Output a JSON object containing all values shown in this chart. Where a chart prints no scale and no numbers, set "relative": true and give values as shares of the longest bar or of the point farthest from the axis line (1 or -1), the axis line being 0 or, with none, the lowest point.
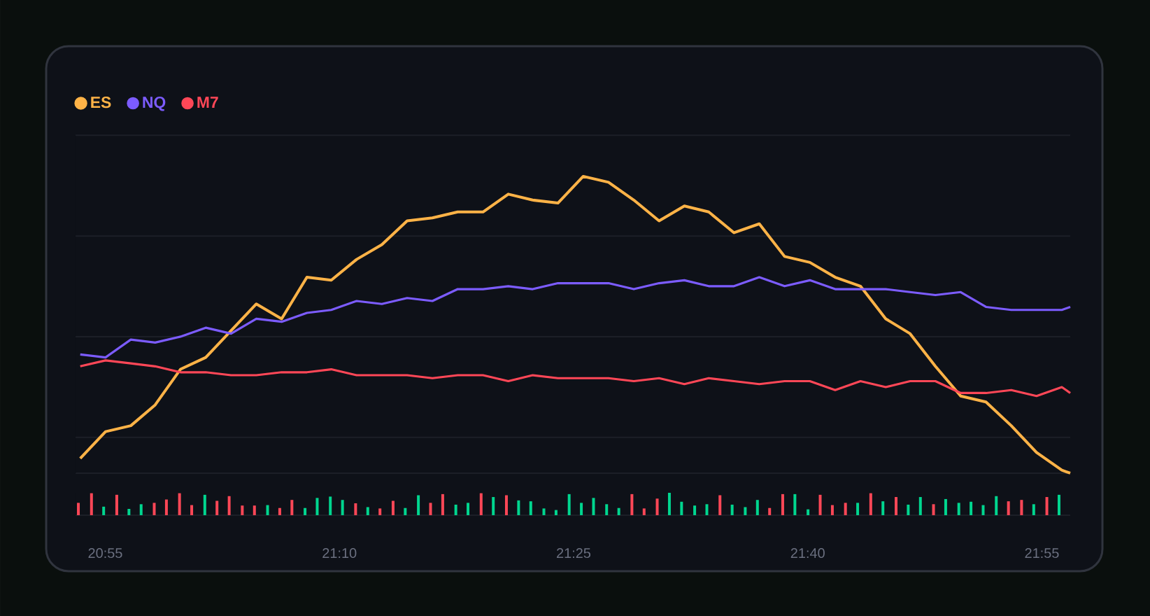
{
  "chart_data": [
    {
      "type": "line",
      "relative": true,
      "legend": "top left",
      "grid": "y",
      "tick_labels": "x",
      "xlim": [
        20.885,
        21.947
      ],
      "xticks": [
        {
          "value": 20.9167,
          "label": "20:55"
        },
        {
          "value": 21.1667,
          "label": "21:10"
        },
        {
          "value": 21.4167,
          "label": "21:25"
        },
        {
          "value": 21.6667,
          "label": "21:40"
        },
        {
          "value": 21.9167,
          "label": "21:55"
        }
      ],
      "x": [
        20.89,
        20.917,
        20.944,
        20.97,
        20.997,
        21.024,
        21.051,
        21.078,
        21.105,
        21.132,
        21.158,
        21.185,
        21.212,
        21.239,
        21.266,
        21.293,
        21.32,
        21.347,
        21.373,
        21.4,
        21.427,
        21.454,
        21.481,
        21.508,
        21.535,
        21.561,
        21.588,
        21.615,
        21.642,
        21.669,
        21.696,
        21.723,
        21.75,
        21.776,
        21.803,
        21.83,
        21.857,
        21.884,
        21.911,
        21.938,
        21.947
      ],
      "series": [
        {
          "name": "ES",
          "color": "#ffb347",
          "values": [
            0.05,
            0.14,
            0.16,
            0.23,
            0.35,
            0.39,
            0.48,
            0.57,
            0.52,
            0.66,
            0.65,
            0.72,
            0.77,
            0.85,
            0.86,
            0.88,
            0.88,
            0.94,
            0.92,
            0.91,
            1,
            0.98,
            0.92,
            0.85,
            0.9,
            0.88,
            0.81,
            0.84,
            0.73,
            0.71,
            0.66,
            0.63,
            0.52,
            0.47,
            0.36,
            0.26,
            0.24,
            0.16,
            0.07,
            0.01,
            0
          ]
        },
        {
          "name": "NQ",
          "color": "#7c5cff",
          "values": [
            0.4,
            0.39,
            0.45,
            0.44,
            0.46,
            0.49,
            0.47,
            0.52,
            0.51,
            0.54,
            0.55,
            0.58,
            0.57,
            0.59,
            0.58,
            0.62,
            0.62,
            0.63,
            0.62,
            0.64,
            0.64,
            0.64,
            0.62,
            0.64,
            0.65,
            0.63,
            0.63,
            0.66,
            0.63,
            0.65,
            0.62,
            0.62,
            0.62,
            0.61,
            0.6,
            0.61,
            0.56,
            0.55,
            0.55,
            0.55,
            0.56
          ]
        },
        {
          "name": "M7",
          "color": "#ff4757",
          "values": [
            0.36,
            0.38,
            0.37,
            0.36,
            0.34,
            0.34,
            0.33,
            0.33,
            0.34,
            0.34,
            0.35,
            0.33,
            0.33,
            0.33,
            0.32,
            0.33,
            0.33,
            0.31,
            0.33,
            0.32,
            0.32,
            0.32,
            0.31,
            0.32,
            0.3,
            0.32,
            0.31,
            0.3,
            0.31,
            0.31,
            0.28,
            0.31,
            0.29,
            0.31,
            0.31,
            0.27,
            0.27,
            0.28,
            0.26,
            0.29,
            0.27
          ]
        }
      ]
    },
    {
      "type": "bar",
      "relative": true,
      "tick_labels": false,
      "xlim": [
        20.885,
        21.947
      ],
      "xticks": [
        {
          "value": 20.9167,
          "label": null
        },
        {
          "value": 21.1667,
          "label": null
        },
        {
          "value": 21.4167,
          "label": null
        },
        {
          "value": 21.6667,
          "label": null
        },
        {
          "value": 21.9167,
          "label": null
        }
      ],
      "x": [
        20.888,
        20.902,
        20.915,
        20.929,
        20.942,
        20.955,
        20.969,
        20.982,
        20.996,
        21.009,
        21.023,
        21.036,
        21.049,
        21.063,
        21.076,
        21.09,
        21.103,
        21.116,
        21.13,
        21.143,
        21.157,
        21.17,
        21.184,
        21.197,
        21.21,
        21.224,
        21.237,
        21.251,
        21.264,
        21.277,
        21.291,
        21.304,
        21.318,
        21.331,
        21.345,
        21.358,
        21.371,
        21.385,
        21.398,
        21.412,
        21.425,
        21.438,
        21.452,
        21.465,
        21.479,
        21.492,
        21.506,
        21.519,
        21.532,
        21.546,
        21.559,
        21.573,
        21.586,
        21.6,
        21.613,
        21.626,
        21.64,
        21.653,
        21.667,
        21.68,
        21.693,
        21.707,
        21.72,
        21.734,
        21.747,
        21.761,
        21.774,
        21.787,
        21.801,
        21.814,
        21.828,
        21.841,
        21.854,
        21.868,
        21.881,
        21.895,
        21.908,
        21.922,
        21.935
      ],
      "series": [
        {
          "values": [
            0.55,
            0.98,
            0.38,
            0.91,
            0.28,
            0.49,
            0.55,
            0.7,
            0.98,
            0.45,
            0.91,
            0.64,
            0.85,
            0.43,
            0.43,
            0.45,
            0.32,
            0.68,
            0.32,
            0.77,
            0.83,
            0.68,
            0.53,
            0.36,
            0.3,
            0.64,
            0.32,
            0.89,
            0.55,
            0.94,
            0.47,
            0.55,
            0.98,
            0.81,
            0.89,
            0.66,
            0.62,
            0.3,
            0.23,
            0.94,
            0.55,
            0.77,
            0.49,
            0.32,
            0.94,
            0.3,
            0.74,
            1,
            0.6,
            0.43,
            0.49,
            0.89,
            0.47,
            0.36,
            0.68,
            0.32,
            0.94,
            0.94,
            0.26,
            0.91,
            0.45,
            0.55,
            0.55,
            0.98,
            0.62,
            0.81,
            0.47,
            0.81,
            0.49,
            0.72,
            0.55,
            0.6,
            0.45,
            0.85,
            0.62,
            0.68,
            0.49,
            0.81,
            0.91
          ],
          "colors": [
            "#ff4757",
            "#ff4757",
            "#00d68f",
            "#ff4757",
            "#00d68f",
            "#00d68f",
            "#ff4757",
            "#ff4757",
            "#ff4757",
            "#ff4757",
            "#00d68f",
            "#ff4757",
            "#ff4757",
            "#ff4757",
            "#ff4757",
            "#00d68f",
            "#ff4757",
            "#ff4757",
            "#00d68f",
            "#00d68f",
            "#00d68f",
            "#00d68f",
            "#ff4757",
            "#00d68f",
            "#ff4757",
            "#ff4757",
            "#00d68f",
            "#00d68f",
            "#ff4757",
            "#ff4757",
            "#00d68f",
            "#00d68f",
            "#ff4757",
            "#00d68f",
            "#ff4757",
            "#00d68f",
            "#00d68f",
            "#00d68f",
            "#00d68f",
            "#00d68f",
            "#00d68f",
            "#00d68f",
            "#00d68f",
            "#00d68f",
            "#ff4757",
            "#ff4757",
            "#ff4757",
            "#00d68f",
            "#00d68f",
            "#00d68f",
            "#00d68f",
            "#ff4757",
            "#00d68f",
            "#00d68f",
            "#00d68f",
            "#ff4757",
            "#ff4757",
            "#00d68f",
            "#00d68f",
            "#ff4757",
            "#ff4757",
            "#ff4757",
            "#00d68f",
            "#ff4757",
            "#00d68f",
            "#ff4757",
            "#00d68f",
            "#00d68f",
            "#ff4757",
            "#00d68f",
            "#00d68f",
            "#00d68f",
            "#00d68f",
            "#00d68f",
            "#ff4757",
            "#ff4757",
            "#00d68f",
            "#ff4757",
            "#00d68f"
          ]
        }
      ]
    }
  ]
}
